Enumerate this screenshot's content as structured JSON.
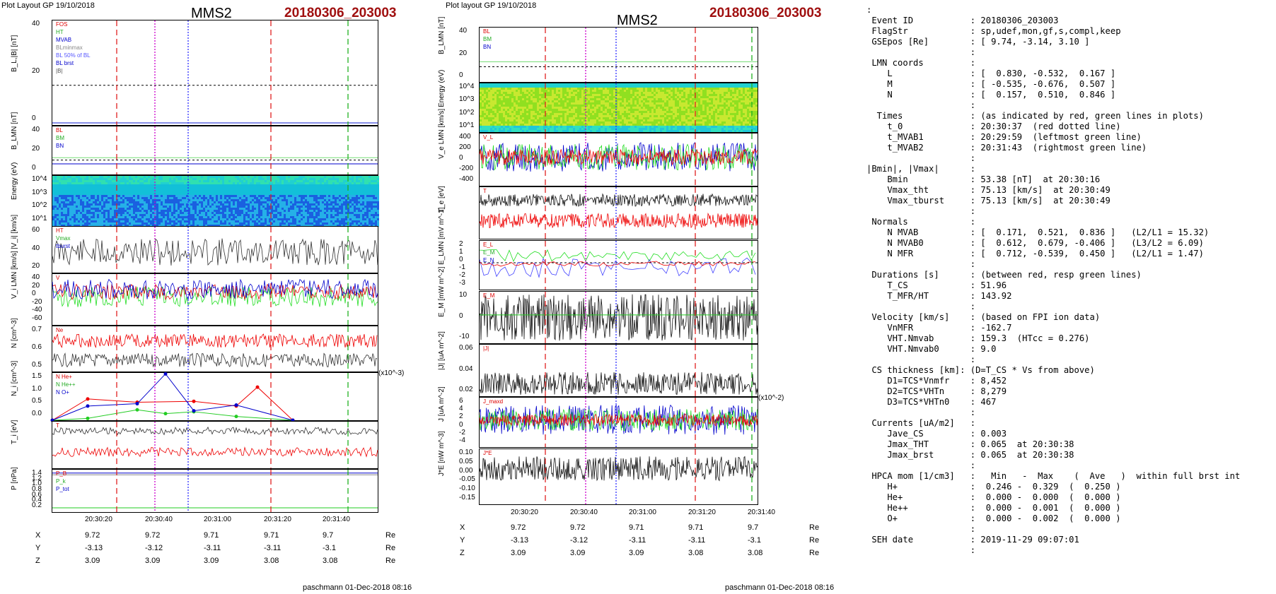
{
  "left": {
    "header": "Plot Layout GP 19/10/2018",
    "spacecraft": "MMS2",
    "event": "20180306_203003",
    "xticks": [
      "20:30:20",
      "20:30:40",
      "20:31:00",
      "20:31:20",
      "20:31:40"
    ],
    "coords": {
      "rows": [
        {
          "label": "X",
          "vals": [
            "9.72",
            "9.72",
            "9.71",
            "9.71",
            "9.7"
          ],
          "unit": "Re"
        },
        {
          "label": "Y",
          "vals": [
            "-3.13",
            "-3.12",
            "-3.11",
            "-3.11",
            "-3.1"
          ],
          "unit": "Re"
        },
        {
          "label": "Z",
          "vals": [
            "3.09",
            "3.09",
            "3.09",
            "3.08",
            "3.08"
          ],
          "unit": "Re"
        }
      ]
    },
    "footer": "paschmann 01-Dec-2018 08:16",
    "panels": [
      {
        "ylabel": "B_L,|B| [nT]",
        "yticks": [
          "40",
          "20",
          "0"
        ],
        "legend": [
          "FOS",
          "HT",
          "MVAB",
          "BLminmax",
          "BL 50% of BL",
          "BL brst",
          "|B|"
        ]
      },
      {
        "ylabel": "B_LMN [nT]",
        "yticks": [
          "40",
          "20",
          "0"
        ],
        "legend": [
          "BL",
          "BM",
          "BN"
        ]
      },
      {
        "ylabel": "Energy (eV)",
        "yticks": [
          "10^4",
          "10^3",
          "10^2",
          "10^1"
        ],
        "legend": []
      },
      {
        "ylabel": "|V_i| [km/s]",
        "yticks": [
          "60",
          "40",
          "20"
        ],
        "legend": [
          "HT",
          "Vmax",
          "tburst"
        ]
      },
      {
        "ylabel": "V_i LMN [km/s]",
        "yticks": [
          "40",
          "20",
          "0",
          "-20",
          "-40",
          "-60"
        ],
        "legend": [
          "V"
        ]
      },
      {
        "ylabel": "N [cm^-3]",
        "yticks": [
          "0.7",
          "0.6",
          "0.5"
        ],
        "legend": [
          "Ne"
        ]
      },
      {
        "ylabel": "N_i [cm^-3]",
        "yticks": [
          "1.5",
          "1.0",
          "0.5",
          "0.0"
        ],
        "exponent": "(x10^-3)",
        "legend": [
          "N He+",
          "N He++",
          "N O+"
        ]
      },
      {
        "ylabel": "T_i [eV]",
        "yticks": [],
        "legend": [
          "T"
        ]
      },
      {
        "ylabel": "P [nPa]",
        "yticks": [
          "1.4",
          "1.2",
          "1.0",
          "0.8",
          "0.6",
          "0.4",
          "0.2"
        ],
        "legend": [
          "P_B",
          "P_k",
          "P_tot"
        ]
      }
    ]
  },
  "right": {
    "header": "Plot layout GP 19/10/2018",
    "spacecraft": "MMS2",
    "event": "20180306_203003",
    "xticks": [
      "20:30:20",
      "20:30:40",
      "20:31:00",
      "20:31:20",
      "20:31:40"
    ],
    "coords": {
      "rows": [
        {
          "label": "X",
          "vals": [
            "9.72",
            "9.72",
            "9.71",
            "9.71",
            "9.7"
          ],
          "unit": "Re"
        },
        {
          "label": "Y",
          "vals": [
            "-3.13",
            "-3.12",
            "-3.11",
            "-3.11",
            "-3.1"
          ],
          "unit": "Re"
        },
        {
          "label": "Z",
          "vals": [
            "3.09",
            "3.09",
            "3.09",
            "3.08",
            "3.08"
          ],
          "unit": "Re"
        }
      ]
    },
    "footer": "paschmann 01-Dec-2018 08:16",
    "panels": [
      {
        "ylabel": "B_LMN [nT]",
        "yticks": [
          "40",
          "20",
          "0"
        ],
        "legend": [
          "BL",
          "BM",
          "BN"
        ]
      },
      {
        "ylabel": "Energy (eV)",
        "yticks": [
          "10^4",
          "10^3",
          "10^2",
          "10^1"
        ],
        "legend": []
      },
      {
        "ylabel": "V_e LMN [km/s]",
        "yticks": [
          "400",
          "200",
          "0",
          "-200",
          "-400"
        ],
        "legend": [
          "V_L"
        ]
      },
      {
        "ylabel": "T_e [eV]",
        "yticks": [],
        "legend": [
          "T"
        ]
      },
      {
        "ylabel": "E_LMN [mV m^-1]",
        "yticks": [
          "2",
          "1",
          "0",
          "-1",
          "-2",
          "-3"
        ],
        "legend": [
          "E_L",
          "E_M",
          "E_N"
        ]
      },
      {
        "ylabel": "E_M [mW m^-2]",
        "yticks": [
          "10",
          "0",
          "-10"
        ],
        "legend": [
          "E_M"
        ]
      },
      {
        "ylabel": "|J| [uA m^-2]",
        "yticks": [
          "0.06",
          "0.04",
          "0.02"
        ],
        "legend": [
          "|J|"
        ]
      },
      {
        "ylabel": "J [uA m^-2]",
        "yticks": [
          "6",
          "4",
          "2",
          "0",
          "-2",
          "-4"
        ],
        "exponent": "(x10^-2)",
        "legend": [
          "J_maxd"
        ]
      },
      {
        "ylabel": "J*E [nW m^-3]",
        "yticks": [
          "0.10",
          "0.05",
          "0.00",
          "-0.05",
          "-0.10",
          "-0.15"
        ],
        "legend": [
          "J*E"
        ]
      }
    ]
  },
  "info": {
    "lines": [
      ":",
      " Event ID           : 20180306_203003",
      " FlagStr            : sp,udef,mon,gf,s,compl,keep",
      " GSEpos [Re]        : [ 9.74, -3.14, 3.10 ]",
      "                    :",
      " LMN coords         :",
      "    L               : [  0.830, -0.532,  0.167 ]",
      "    M               : [ -0.535, -0.676,  0.507 ]",
      "    N               : [  0.157,  0.510,  0.846 ]",
      "                    :",
      "  Times             : (as indicated by red, green lines in plots)",
      "    t_0             : 20:30:37  (red dotted line)",
      "    t_MVAB1         : 20:29:59  (leftmost green line)",
      "    t_MVAB2         : 20:31:43  (rightmost green line)",
      "                    :",
      "|Bmin|, |Vmax|      :",
      "    Bmin            : 53.38 [nT]  at 20:30:16",
      "    Vmax_tht        : 75.13 [km/s]  at 20:30:49",
      "    Vmax_tburst     : 75.13 [km/s]  at 20:30:49",
      "                    :",
      " Normals            :",
      "    N MVAB          : [  0.171,  0.521,  0.836 ]   (L2/L1 = 15.32)",
      "    N MVAB0         : [  0.612,  0.679, -0.406 ]   (L3/L2 = 6.09)",
      "    N MFR           : [  0.712, -0.539,  0.450 ]   (L2/L1 = 1.47)",
      "                    :",
      " Durations [s]      : (between red, resp green lines)",
      "    T_CS            : 51.96",
      "    T_MFR/HT        : 143.92",
      "                    :",
      " Velocity [km/s]    : (based on FPI ion data)",
      "    VnMFR           : -162.7",
      "    VHT.Nmvab       : 159.3  (HTcc = 0.276)",
      "    VHT.Nmvab0      : 9.0",
      "                    :",
      " CS thickness [km]: (D=T_CS * Vs from above)",
      "    D1=TCS*Vnmfr    : 8,452",
      "    D2=TCS*VHTn     : 8,279",
      "    D3=TCS*VHTn0    : 467",
      "                    :",
      " Currents [uA/m2]   :",
      "    Jave_CS         : 0.003",
      "    Jmax_THT        : 0.065  at 20:30:38",
      "    Jmax_brst       : 0.065  at 20:30:38",
      "                    :",
      " HPCA mom [1/cm3]   :   Min   -  Max    (  Ave   )  within full brst int",
      "    H+              :  0.246 -  0.329  (  0.250 )",
      "    He+             :  0.000 -  0.000  (  0.000 )",
      "    He++            :  0.000 -  0.001  (  0.000 )",
      "    O+              :  0.000 -  0.002  (  0.000 )",
      "                    :",
      " SEH date           : 2019-11-29 09:07:01",
      "                    :"
    ]
  },
  "chart_data": [
    {
      "type": "line",
      "title": "MMS2 20180306_203003 (left)",
      "x": [
        "20:30:20",
        "20:30:40",
        "20:31:00",
        "20:31:20",
        "20:31:40"
      ],
      "series": [
        {
          "name": "N He+",
          "values": [
            0.0,
            0.2,
            0.15,
            0.05,
            0.0
          ]
        },
        {
          "name": "N He++",
          "values": [
            0.0,
            0.7,
            0.55,
            1.1,
            0.0
          ]
        },
        {
          "name": "N O+",
          "values": [
            0.0,
            0.4,
            1.6,
            0.3,
            0.0
          ]
        }
      ]
    },
    {
      "type": "line",
      "title": "MMS2 20180306_203003 (right)",
      "x": [
        "20:30:20",
        "20:30:40",
        "20:31:00",
        "20:31:20",
        "20:31:40"
      ],
      "series": []
    }
  ]
}
